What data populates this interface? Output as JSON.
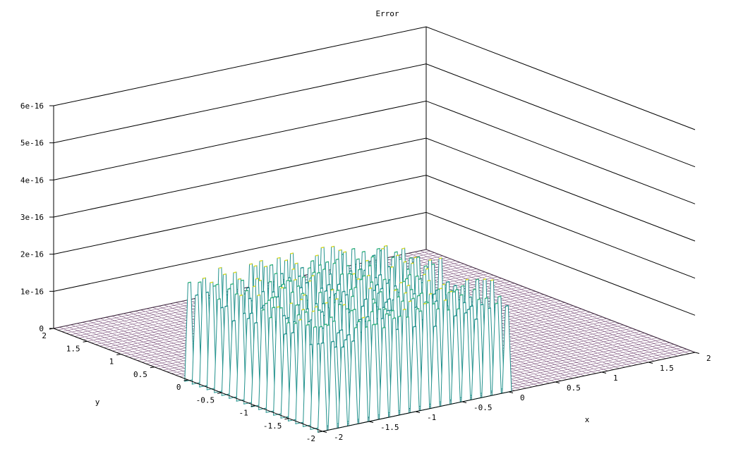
{
  "chart_data": {
    "type": "surface",
    "title": "Error",
    "xlabel": "x",
    "ylabel": "y",
    "zlabel": "",
    "xlim": [
      -2,
      2
    ],
    "ylim": [
      -2,
      2
    ],
    "zlim": [
      0,
      6e-16
    ],
    "x_ticks": [
      "-2",
      "-1.5",
      "-1",
      "-0.5",
      "0",
      "0.5",
      "1",
      "1.5",
      "2"
    ],
    "y_ticks": [
      "-2",
      "-1.5",
      "-1",
      "-0.5",
      "0",
      "0.5",
      "1",
      "1.5",
      "2"
    ],
    "z_ticks": [
      "0",
      "1e-16",
      "2e-16",
      "3e-16",
      "4e-16",
      "5e-16",
      "6e-16"
    ],
    "grid": true,
    "colormap": [
      "#440154",
      "#31688e",
      "#21918c",
      "#35b779",
      "#fde725"
    ],
    "mesh_color": "#6a3a6a",
    "nonzero_region": {
      "x": [
        -2,
        0
      ],
      "y": [
        -2,
        0
      ]
    },
    "error_max": 3e-16,
    "error_typical": 2.5e-16,
    "peak_spacing": 0.11
  }
}
